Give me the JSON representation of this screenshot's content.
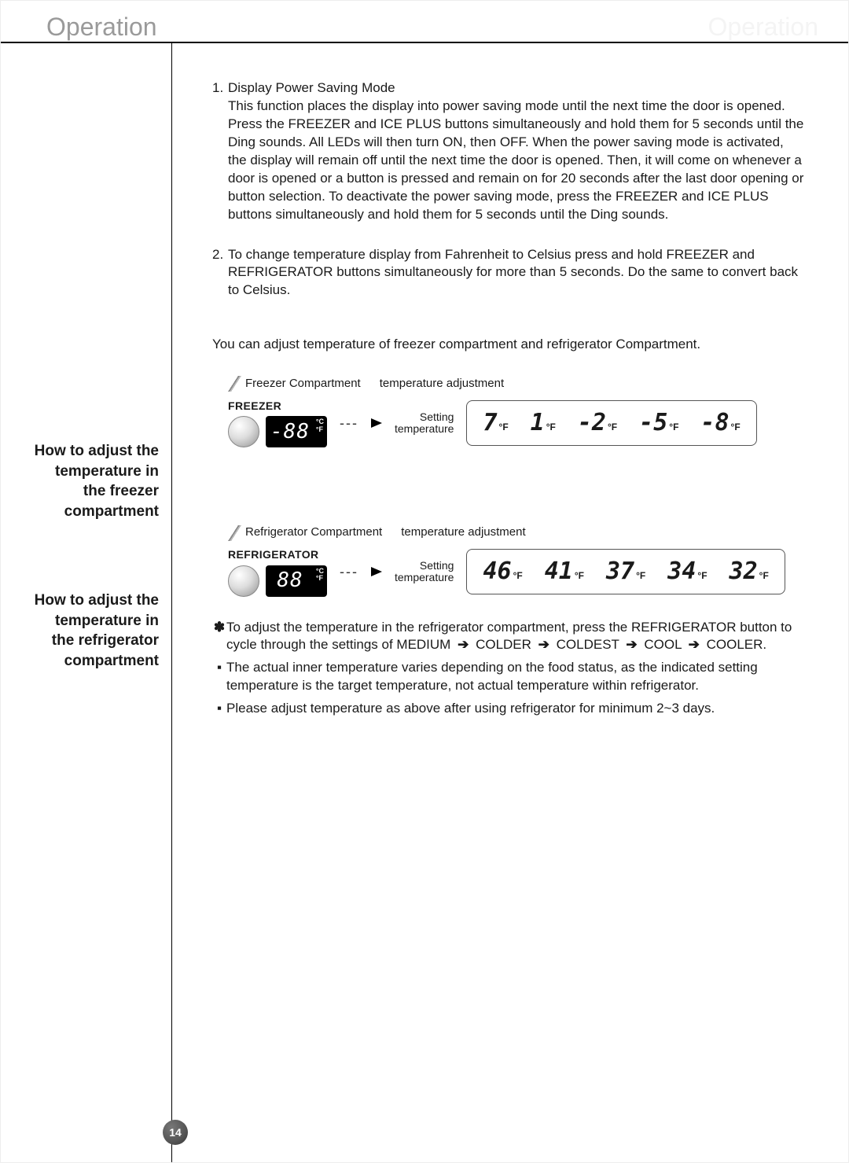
{
  "header": {
    "title": "Operation",
    "ghost_title": "Operation"
  },
  "page_number": "14",
  "section1": {
    "item1_num": "1.",
    "item1_title": "Display Power Saving Mode",
    "item1_body": "This function places the display into power saving mode until the next time the door is opened.\nPress the FREEZER and ICE PLUS buttons simultaneously and hold them for 5 seconds until the Ding sounds. All LEDs will then turn ON, then OFF. When the power saving mode is activated, the display will remain off until the next time the door is opened. Then, it will come on whenever a door is opened or a button is pressed and remain on for 20 seconds after the last door opening or button selection. To deactivate the power saving mode, press the FREEZER and ICE PLUS buttons simultaneously and hold them for 5 seconds until the Ding sounds.",
    "item2_num": "2.",
    "item2_body": "To change temperature display from Fahrenheit to Celsius press and hold FREEZER and REFRIGERATOR buttons simultaneously for more than 5 seconds. Do the same to convert back to Celsius."
  },
  "intro_line": "You can adjust temperature of freezer compartment and refrigerator Compartment.",
  "side1": {
    "l1": "How to adjust the",
    "l2": "temperature in",
    "l3": "the freezer",
    "l4": "compartment"
  },
  "side2": {
    "l1": "How to adjust the",
    "l2": "temperature in",
    "l3": "the refrigerator",
    "l4": "compartment"
  },
  "freezer": {
    "cap_a": "Freezer Compartment",
    "cap_b": "temperature adjustment",
    "ctrl_title": "FREEZER",
    "lcd_text": "-88",
    "lcd_unit_top": "°C",
    "lcd_unit_bot": "°F",
    "setting_l1": "Setting",
    "setting_l2": "temperature",
    "seq": [
      "7",
      "1",
      "-2",
      "-5",
      "-8"
    ],
    "unit": "°F"
  },
  "fridge": {
    "cap_a": "Refrigerator Compartment",
    "cap_b": "temperature adjustment",
    "ctrl_title": "REFRIGERATOR",
    "lcd_text": "88",
    "lcd_unit_top": "°C",
    "lcd_unit_bot": "°F",
    "setting_l1": "Setting",
    "setting_l2": "temperature",
    "seq": [
      "46",
      "41",
      "37",
      "34",
      "32"
    ],
    "unit": "°F"
  },
  "notes": {
    "n1_pre": "To adjust the temperature in the refrigerator compartment, press the REFRIGERATOR button to cycle through the settings of MEDIUM",
    "n1_w1": "COLDER",
    "n1_w2": "COLDEST",
    "n1_w3": "COOL",
    "n1_w4": "COOLER.",
    "n2": "The actual inner temperature varies depending on the food status, as the indicated setting temperature is the target temperature, not actual temperature within refrigerator.",
    "n3": "Please adjust temperature as above after using refrigerator for minimum 2~3 days."
  },
  "marks": {
    "ast": "✽",
    "sq": "▪",
    "arrow": "➔"
  },
  "colors": {
    "title_grey": "#9a9a9a"
  }
}
